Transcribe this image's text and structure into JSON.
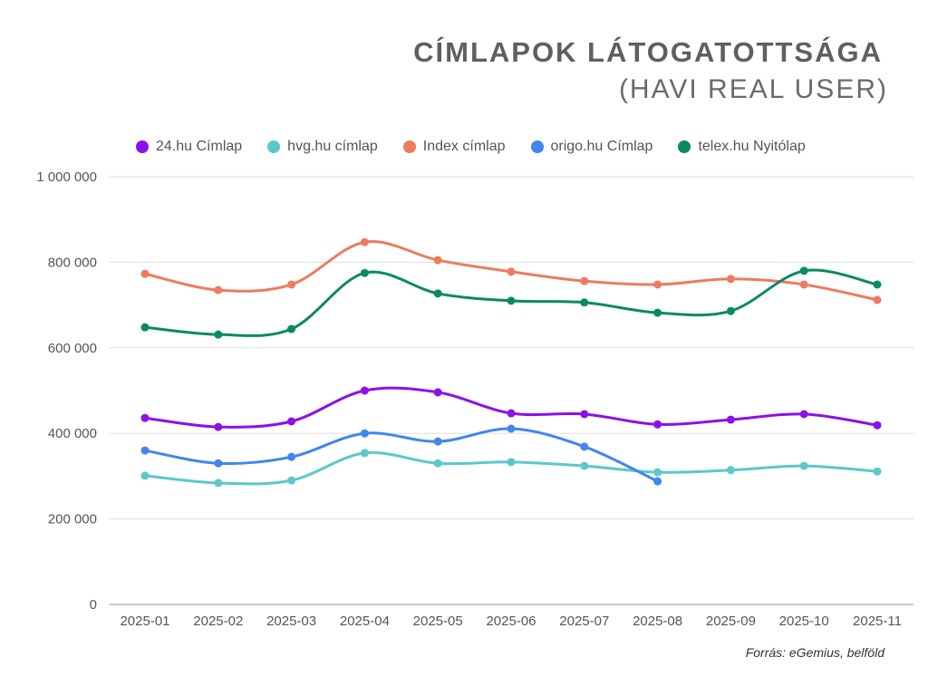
{
  "chart_data": {
    "type": "line",
    "title": "CÍMLAPOK LÁTOGATOTTSÁGA",
    "subtitle": "(HAVI REAL USER)",
    "source": "Forrás: eGemius, belföld",
    "xlabel": "",
    "ylabel": "",
    "ylim": [
      0,
      1000000
    ],
    "y_ticks": [
      0,
      200000,
      400000,
      600000,
      800000,
      1000000
    ],
    "y_tick_labels": [
      "0",
      "200 000",
      "400 000",
      "600 000",
      "800 000",
      "1 000 000"
    ],
    "grid": true,
    "legend_placement": "top",
    "categories": [
      "2025-01",
      "2025-02",
      "2025-03",
      "2025-04",
      "2025-05",
      "2025-06",
      "2025-07",
      "2025-08",
      "2025-09",
      "2025-10",
      "2025-11"
    ],
    "series": [
      {
        "name": "24.hu Címlap",
        "color": "#8b10ea",
        "values": [
          436000,
          415000,
          428000,
          500000,
          496000,
          447000,
          445000,
          421000,
          432000,
          445000,
          419000
        ]
      },
      {
        "name": "hvg.hu címlap",
        "color": "#5cc8c9",
        "values": [
          301000,
          284000,
          290000,
          354000,
          330000,
          333000,
          324000,
          309000,
          314000,
          324000,
          311000
        ]
      },
      {
        "name": "Index címlap",
        "color": "#ee7b5d",
        "values": [
          773000,
          735000,
          748000,
          847000,
          805000,
          778000,
          756000,
          748000,
          761000,
          748000,
          712000
        ]
      },
      {
        "name": "origo.hu Címlap",
        "color": "#4285ef",
        "values": [
          360000,
          330000,
          345000,
          400000,
          381000,
          411000,
          369000,
          288000,
          null,
          null,
          null
        ]
      },
      {
        "name": "telex.hu Nyitólap",
        "color": "#0b8a62",
        "values": [
          648000,
          631000,
          644000,
          775000,
          727000,
          710000,
          706000,
          682000,
          686000,
          780000,
          748000
        ]
      }
    ]
  }
}
